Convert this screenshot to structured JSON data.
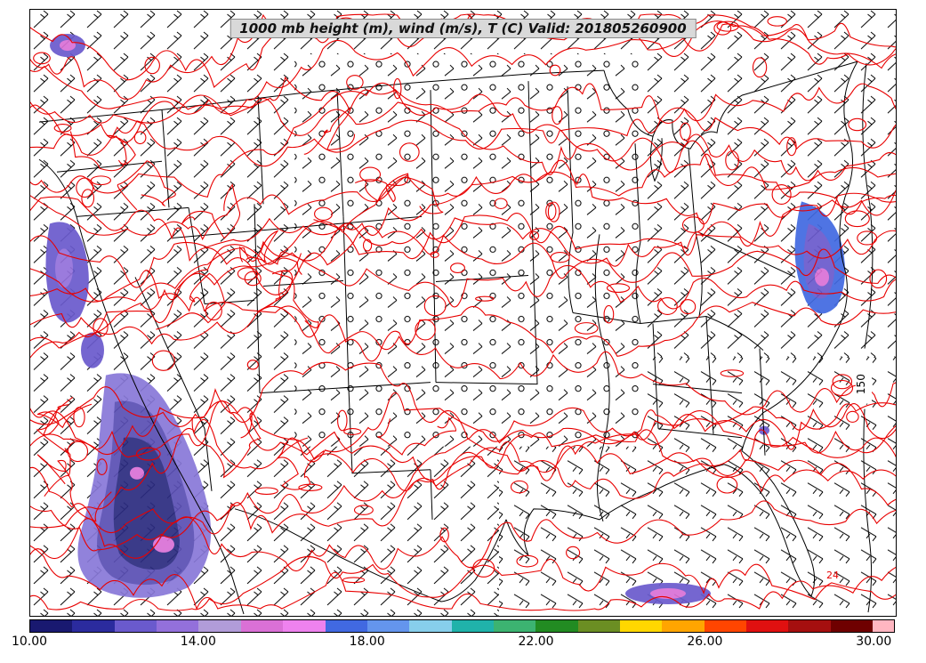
{
  "chart_data": {
    "type": "heatmap",
    "subtype": "weather_contour_map",
    "title": "1000 mb height (m), wind (m/s), T (C) Valid: 201805260900",
    "level": "1000 mb",
    "valid_time": "201805260900",
    "region": "Continental United States",
    "fields": [
      {
        "name": "geopotential height",
        "units": "m",
        "style": "black contours"
      },
      {
        "name": "wind",
        "units": "m/s",
        "style": "wind barbs and calm circles"
      },
      {
        "name": "temperature",
        "units": "C",
        "style": "red contours with cold color fill"
      }
    ],
    "contour_labels": {
      "height": [
        "150"
      ],
      "temperature": [
        "24"
      ]
    },
    "colors": {
      "temperature_contour": "#e80000",
      "height_contour": "#000000",
      "wind_barb": "#000000",
      "title_box_bg": "#d9d9d9"
    },
    "colorbar": {
      "orientation": "horizontal",
      "position": "bottom",
      "units": "C",
      "value_range": [
        10,
        30.5
      ],
      "tick_labels": [
        "10.00",
        "14.00",
        "18.00",
        "22.00",
        "26.00",
        "30.00"
      ],
      "tick_values": [
        10,
        14,
        18,
        22,
        26,
        30
      ],
      "segment_colors": [
        "#191970",
        "#2b2b9e",
        "#6a5acd",
        "#9370db",
        "#b19cd9",
        "#da70d6",
        "#ee82ee",
        "#4169e1",
        "#6495ed",
        "#87ceeb",
        "#20b2aa",
        "#3cb371",
        "#228b22",
        "#6b8e23",
        "#ffd700",
        "#ffa500",
        "#ff4500",
        "#e01010",
        "#a50f0f",
        "#6f0000"
      ],
      "overflow_color": "#ffb6c1"
    },
    "grid": false
  }
}
